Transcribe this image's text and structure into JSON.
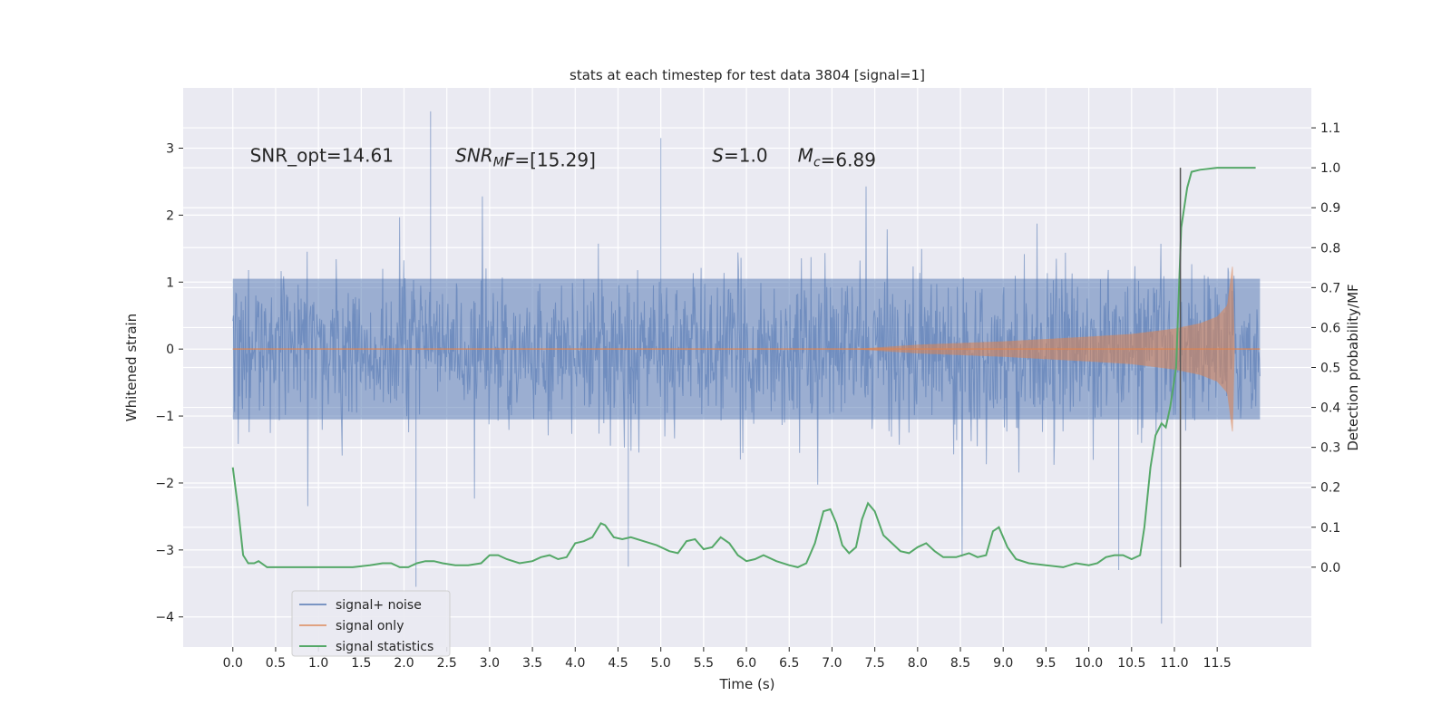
{
  "chart_data": {
    "type": "line",
    "title": "stats at each timestep for test data 3804 [signal=1]",
    "xlabel": "Time (s)",
    "ylabel_left": "Whitened strain",
    "ylabel_right": "Detection probability/MF",
    "xlim": [
      -0.58,
      12.6
    ],
    "ylim_left": [
      -4.45,
      3.9
    ],
    "ylim_right": [
      -0.2,
      1.2
    ],
    "x_ticks": [
      0,
      0.5,
      1,
      1.5,
      2,
      2.5,
      3,
      3.5,
      4,
      4.5,
      5,
      5.5,
      6,
      6.5,
      7,
      7.5,
      8,
      8.5,
      9,
      9.5,
      10,
      10.5,
      11,
      11.5
    ],
    "x_tick_labels": [
      "0.0",
      "0.5",
      "1.0",
      "1.5",
      "2.0",
      "2.5",
      "3.0",
      "3.5",
      "4.0",
      "4.5",
      "5.0",
      "5.5",
      "6.0",
      "6.5",
      "7.0",
      "7.5",
      "8.0",
      "8.5",
      "9.0",
      "9.5",
      "10.0",
      "10.5",
      "11.0",
      "11.5"
    ],
    "y_left_ticks": [
      -4,
      -3,
      -2,
      -1,
      0,
      1,
      2,
      3
    ],
    "y_left_tick_labels": [
      "−4",
      "−3",
      "−2",
      "−1",
      "0",
      "1",
      "2",
      "3"
    ],
    "y_right_ticks": [
      0,
      0.1,
      0.2,
      0.3,
      0.4,
      0.5,
      0.6,
      0.7,
      0.8,
      0.9,
      1.0,
      1.1
    ],
    "y_right_tick_labels": [
      "0.0",
      "0.1",
      "0.2",
      "0.3",
      "0.4",
      "0.5",
      "0.6",
      "0.7",
      "0.8",
      "0.9",
      "1.0",
      "1.1"
    ],
    "grid": true,
    "legend_position": "bottom-left",
    "annotations": [
      {
        "parts": [
          {
            "t": "SNR_opt=14.61",
            "i": false
          }
        ],
        "x": 0.2,
        "y": 2.8
      },
      {
        "parts": [
          {
            "t": "SNR",
            "i": true
          },
          {
            "t": "M",
            "i": true,
            "sub": true
          },
          {
            "t": "F",
            "i": true
          },
          {
            "t": "=[15.29]",
            "i": false
          }
        ],
        "x": 2.6,
        "y": 2.8
      },
      {
        "parts": [
          {
            "t": "S",
            "i": true
          },
          {
            "t": "=1.0",
            "i": false
          }
        ],
        "x": 5.6,
        "y": 2.8
      },
      {
        "parts": [
          {
            "t": "M",
            "i": true
          },
          {
            "t": "c",
            "i": true,
            "sub": true
          },
          {
            "t": "=6.89",
            "i": false
          }
        ],
        "x": 6.6,
        "y": 2.8
      }
    ],
    "vertical_line": {
      "x": 11.07,
      "y_range": [
        0.0,
        1.0
      ],
      "axis": "right",
      "color": "#555555"
    },
    "series": [
      {
        "name": "signal+ noise",
        "axis": "left",
        "color": "#4c72b0",
        "opacity": 0.55,
        "style": "noise",
        "x_range": [
          0,
          12.0
        ],
        "envelope": {
          "core": 1.05,
          "outer": 1.5,
          "peak_max": 3.55,
          "peak_min": -4.1
        }
      },
      {
        "name": "signal only",
        "axis": "left",
        "color": "#dd8452",
        "opacity": 0.55,
        "style": "chirp",
        "x_range": [
          0,
          12.0
        ],
        "chirp_start": 7.3,
        "chirp_end": 11.7,
        "amplitude_points": [
          [
            7.3,
            0.0
          ],
          [
            8.0,
            0.06
          ],
          [
            9.0,
            0.11
          ],
          [
            10.0,
            0.18
          ],
          [
            10.5,
            0.22
          ],
          [
            11.0,
            0.3
          ],
          [
            11.3,
            0.38
          ],
          [
            11.5,
            0.48
          ],
          [
            11.62,
            0.65
          ],
          [
            11.68,
            1.25
          ],
          [
            11.7,
            0.0
          ]
        ]
      },
      {
        "name": "signal statistics",
        "axis": "right",
        "color": "#55a868",
        "opacity": 1.0,
        "style": "line",
        "x": [
          0.0,
          0.06,
          0.12,
          0.18,
          0.25,
          0.3,
          0.4,
          0.5,
          0.6,
          0.8,
          1.0,
          1.2,
          1.4,
          1.6,
          1.75,
          1.85,
          1.95,
          2.05,
          2.15,
          2.25,
          2.35,
          2.45,
          2.6,
          2.75,
          2.9,
          3.0,
          3.1,
          3.2,
          3.35,
          3.5,
          3.6,
          3.7,
          3.8,
          3.9,
          4.0,
          4.1,
          4.2,
          4.3,
          4.35,
          4.45,
          4.55,
          4.65,
          4.8,
          4.95,
          5.1,
          5.2,
          5.3,
          5.4,
          5.5,
          5.6,
          5.7,
          5.8,
          5.9,
          6.0,
          6.1,
          6.2,
          6.35,
          6.5,
          6.6,
          6.7,
          6.8,
          6.9,
          6.98,
          7.05,
          7.12,
          7.2,
          7.28,
          7.35,
          7.42,
          7.5,
          7.6,
          7.7,
          7.8,
          7.9,
          8.0,
          8.1,
          8.2,
          8.3,
          8.45,
          8.6,
          8.7,
          8.8,
          8.88,
          8.95,
          9.05,
          9.15,
          9.3,
          9.5,
          9.7,
          9.85,
          10.0,
          10.1,
          10.2,
          10.3,
          10.4,
          10.5,
          10.6,
          10.65,
          10.72,
          10.78,
          10.85,
          10.9,
          10.95,
          11.02,
          11.08,
          11.15,
          11.2,
          11.3,
          11.5,
          11.7,
          11.95
        ],
        "y": [
          0.25,
          0.15,
          0.03,
          0.01,
          0.01,
          0.015,
          0.0,
          0.0,
          0.0,
          0.0,
          0.0,
          0.0,
          0.0,
          0.005,
          0.01,
          0.01,
          0.0,
          0.0,
          0.01,
          0.015,
          0.015,
          0.01,
          0.005,
          0.005,
          0.01,
          0.03,
          0.03,
          0.02,
          0.01,
          0.015,
          0.025,
          0.03,
          0.02,
          0.025,
          0.06,
          0.065,
          0.075,
          0.11,
          0.105,
          0.075,
          0.07,
          0.075,
          0.065,
          0.055,
          0.04,
          0.035,
          0.065,
          0.07,
          0.045,
          0.05,
          0.075,
          0.06,
          0.03,
          0.015,
          0.02,
          0.03,
          0.015,
          0.005,
          0.0,
          0.01,
          0.06,
          0.14,
          0.145,
          0.11,
          0.055,
          0.035,
          0.05,
          0.12,
          0.16,
          0.14,
          0.08,
          0.06,
          0.04,
          0.035,
          0.05,
          0.06,
          0.04,
          0.025,
          0.025,
          0.035,
          0.025,
          0.03,
          0.09,
          0.1,
          0.05,
          0.02,
          0.01,
          0.005,
          0.0,
          0.01,
          0.005,
          0.01,
          0.025,
          0.03,
          0.03,
          0.02,
          0.03,
          0.1,
          0.25,
          0.33,
          0.36,
          0.35,
          0.4,
          0.5,
          0.85,
          0.95,
          0.99,
          0.995,
          1.0,
          1.0,
          1.0
        ]
      }
    ]
  }
}
